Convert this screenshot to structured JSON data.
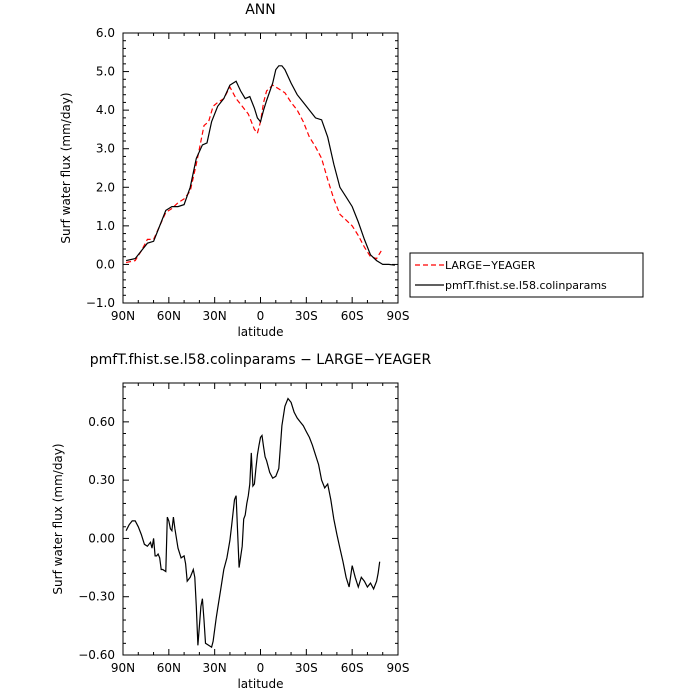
{
  "chart_data": [
    {
      "type": "line",
      "title": "ANN",
      "xlabel": "latitude",
      "ylabel": "Surf  water flux (mm/day)",
      "xlim": [
        90,
        -90
      ],
      "ylim": [
        -1.0,
        6.0
      ],
      "xticks": [
        90,
        60,
        30,
        0,
        -30,
        -60,
        -90
      ],
      "xtick_labels": [
        "90N",
        "60N",
        "30N",
        "0",
        "30S",
        "60S",
        "90S"
      ],
      "yticks": [
        -1,
        0,
        1,
        2,
        3,
        4,
        5,
        6
      ],
      "ytick_labels": [
        "−1.0",
        "0.0",
        "1.0",
        "2.0",
        "3.0",
        "4.0",
        "5.0",
        "6.0"
      ],
      "grid": false,
      "legend_position": "right",
      "series": [
        {
          "name": "LARGE−YEAGER",
          "color": "#ff0000",
          "dash": "dashed",
          "x": [
            88,
            82,
            78,
            74,
            70,
            66,
            62,
            58,
            54,
            50,
            46,
            42,
            40,
            37,
            34,
            31,
            28,
            24,
            20,
            16,
            12,
            8,
            4,
            2,
            0,
            -2,
            -4,
            -8,
            -12,
            -16,
            -20,
            -24,
            -28,
            -32,
            -36,
            -40,
            -44,
            -48,
            -52,
            -56,
            -60,
            -64,
            -68,
            -72,
            -76,
            -79
          ],
          "y": [
            0.05,
            0.1,
            0.35,
            0.65,
            0.65,
            1.0,
            1.35,
            1.45,
            1.6,
            1.7,
            1.9,
            2.6,
            3.0,
            3.6,
            3.7,
            4.1,
            4.2,
            4.3,
            4.6,
            4.3,
            4.1,
            3.9,
            3.5,
            3.4,
            3.7,
            4.2,
            4.5,
            4.65,
            4.55,
            4.45,
            4.2,
            4.0,
            3.7,
            3.3,
            3.05,
            2.75,
            2.2,
            1.7,
            1.3,
            1.15,
            1.0,
            0.75,
            0.45,
            0.2,
            0.15,
            0.35
          ]
        },
        {
          "name": "pmfT.fhist.se.l58.colinparams",
          "color": "#000000",
          "dash": "solid",
          "x": [
            88,
            82,
            78,
            74,
            70,
            66,
            62,
            58,
            54,
            50,
            46,
            42,
            38,
            35,
            32,
            28,
            24,
            20,
            16,
            13,
            10,
            7,
            4,
            2,
            0,
            -2,
            -4,
            -8,
            -10,
            -12,
            -14,
            -16,
            -20,
            -24,
            -28,
            -32,
            -36,
            -40,
            -44,
            -48,
            -52,
            -56,
            -60,
            -64,
            -68,
            -72,
            -76,
            -80,
            -84,
            -88
          ],
          "y": [
            0.1,
            0.15,
            0.35,
            0.55,
            0.6,
            1.0,
            1.4,
            1.5,
            1.5,
            1.55,
            2.0,
            2.75,
            3.1,
            3.15,
            3.7,
            4.1,
            4.3,
            4.65,
            4.75,
            4.5,
            4.3,
            4.35,
            4.05,
            3.8,
            3.7,
            4.0,
            4.25,
            4.7,
            5.05,
            5.15,
            5.15,
            5.05,
            4.7,
            4.4,
            4.2,
            4.0,
            3.8,
            3.75,
            3.3,
            2.6,
            2.0,
            1.75,
            1.5,
            1.1,
            0.65,
            0.25,
            0.1,
            0.0,
            0.0,
            -0.02
          ]
        }
      ]
    },
    {
      "type": "line",
      "title": "pmfT.fhist.se.l58.colinparams − LARGE−YEAGER",
      "xlabel": "latitude",
      "ylabel": "Surf  water flux (mm/day)",
      "xlim": [
        90,
        -90
      ],
      "ylim": [
        -0.6,
        0.8
      ],
      "xticks": [
        90,
        60,
        30,
        0,
        -30,
        -60,
        -90
      ],
      "xtick_labels": [
        "90N",
        "60N",
        "30N",
        "0",
        "30S",
        "60S",
        "90S"
      ],
      "yticks": [
        -0.6,
        -0.3,
        0,
        0.3,
        0.6
      ],
      "ytick_labels": [
        "−0.60",
        "−0.30",
        "0.00",
        "0.30",
        "0.60"
      ],
      "grid": false,
      "series": [
        {
          "name": "",
          "color": "#000000",
          "dash": "solid",
          "x": [
            88,
            86,
            84,
            82,
            80,
            78,
            76,
            74,
            72,
            71,
            70,
            69,
            68,
            67,
            66,
            65,
            64,
            62,
            61,
            60,
            59,
            58,
            57,
            56,
            54,
            52,
            50,
            49,
            48,
            46,
            45,
            44,
            43,
            42,
            41,
            40,
            39,
            38,
            37,
            36,
            34,
            32,
            31,
            29,
            28,
            26,
            24,
            22,
            20,
            19,
            18,
            17,
            16,
            14,
            12,
            11,
            10,
            9,
            8,
            7,
            6,
            5,
            4,
            3,
            2,
            1,
            0,
            -1,
            -2,
            -3,
            -4,
            -6,
            -8,
            -10,
            -12,
            -14,
            -16,
            -18,
            -20,
            -22,
            -24,
            -26,
            -28,
            -30,
            -32,
            -34,
            -36,
            -38,
            -40,
            -42,
            -44,
            -46,
            -48,
            -50,
            -52,
            -54,
            -56,
            -58,
            -60,
            -62,
            -64,
            -66,
            -68,
            -70,
            -72,
            -74,
            -76,
            -77,
            -78
          ],
          "y": [
            0.04,
            0.07,
            0.09,
            0.09,
            0.06,
            0.02,
            -0.03,
            -0.04,
            -0.02,
            -0.05,
            0.0,
            -0.09,
            -0.09,
            -0.08,
            -0.1,
            -0.16,
            -0.16,
            -0.17,
            0.11,
            0.09,
            0.05,
            0.04,
            0.11,
            0.05,
            -0.05,
            -0.1,
            -0.09,
            -0.13,
            -0.22,
            -0.2,
            -0.18,
            -0.16,
            -0.2,
            -0.35,
            -0.55,
            -0.45,
            -0.35,
            -0.31,
            -0.42,
            -0.54,
            -0.55,
            -0.56,
            -0.53,
            -0.41,
            -0.36,
            -0.26,
            -0.16,
            -0.1,
            -0.01,
            0.06,
            0.13,
            0.2,
            0.22,
            -0.15,
            -0.04,
            0.1,
            0.12,
            0.18,
            0.22,
            0.28,
            0.44,
            0.27,
            0.28,
            0.36,
            0.43,
            0.48,
            0.52,
            0.53,
            0.47,
            0.42,
            0.4,
            0.34,
            0.31,
            0.32,
            0.36,
            0.58,
            0.68,
            0.72,
            0.7,
            0.65,
            0.62,
            0.6,
            0.58,
            0.55,
            0.52,
            0.48,
            0.43,
            0.38,
            0.3,
            0.26,
            0.28,
            0.2,
            0.1,
            0.02,
            -0.05,
            -0.12,
            -0.2,
            -0.25,
            -0.14,
            -0.2,
            -0.25,
            -0.2,
            -0.22,
            -0.25,
            -0.23,
            -0.26,
            -0.22,
            -0.18,
            -0.12
          ]
        }
      ]
    }
  ]
}
